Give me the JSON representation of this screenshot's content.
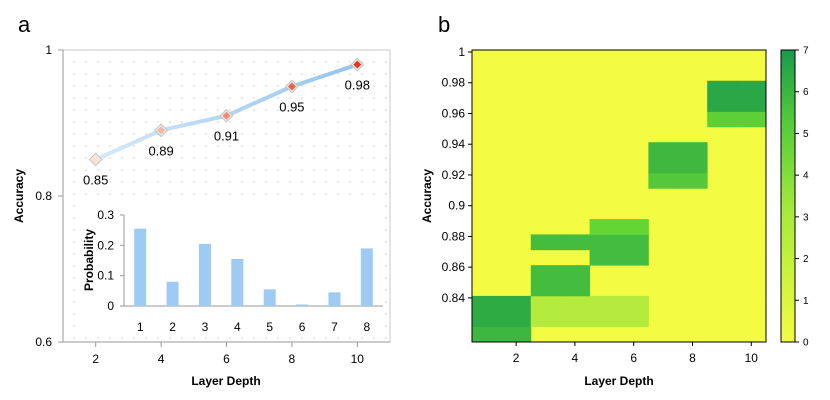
{
  "panel_a_letter": "a",
  "panel_b_letter": "b",
  "chart_data": [
    {
      "type": "line",
      "title": "",
      "xlabel": "Layer Depth",
      "ylabel": "Accuracy",
      "x": [
        2,
        4,
        6,
        8,
        10
      ],
      "values": [
        0.85,
        0.89,
        0.91,
        0.95,
        0.98
      ],
      "data_labels": [
        "0.85",
        "0.89",
        "0.91",
        "0.95",
        "0.98"
      ],
      "xticks": [
        "2",
        "4",
        "6",
        "8",
        "10"
      ],
      "yticks": [
        "0.6",
        "0.8",
        "1"
      ],
      "xlim": [
        1,
        11
      ],
      "ylim": [
        0.6,
        1
      ],
      "grid": "dotted background",
      "colors": {
        "line_start": "#d6e8f7",
        "line_end": "#8fc2ec",
        "marker_start": "#fde2cf",
        "marker_end": "#e8361c"
      }
    },
    {
      "type": "bar",
      "title": "",
      "xlabel": "",
      "ylabel": "Probability",
      "categories": [
        "1",
        "2",
        "3",
        "4",
        "5",
        "6",
        "7",
        "8"
      ],
      "values": [
        0.255,
        0.08,
        0.205,
        0.155,
        0.055,
        0.005,
        0.045,
        0.19
      ],
      "yticks": [
        "0",
        "0.1",
        "0.2",
        "0.3"
      ],
      "ylim": [
        0,
        0.3
      ],
      "placement": "inset bottom-right of panel a",
      "colors": {
        "bar": "#9ecbf4"
      }
    },
    {
      "type": "heatmap",
      "title": "",
      "xlabel": "Layer Depth",
      "ylabel": "Accuracy",
      "x_categories": [
        "1",
        "2",
        "3",
        "4",
        "5",
        "6",
        "7",
        "8",
        "9",
        "10"
      ],
      "xticks": [
        "2",
        "4",
        "6",
        "8",
        "10"
      ],
      "y_categories": [
        "0.82",
        "0.83",
        "0.84",
        "0.85",
        "0.86",
        "0.87",
        "0.88",
        "0.89",
        "0.90",
        "0.91",
        "0.92",
        "0.93",
        "0.94",
        "0.95",
        "0.96",
        "0.97",
        "0.98",
        "0.99",
        "1"
      ],
      "yticks": [
        "1",
        "0.98",
        "0.96",
        "0.94",
        "0.92",
        "0.9",
        "0.88",
        "0.86",
        "0.84"
      ],
      "cells": [
        {
          "x": 1,
          "y": 0.82,
          "value": 5.3
        },
        {
          "x": 2,
          "y": 0.82,
          "value": 5.3
        },
        {
          "x": 1,
          "y": 0.83,
          "value": 6
        },
        {
          "x": 2,
          "y": 0.83,
          "value": 6
        },
        {
          "x": 3,
          "y": 0.83,
          "value": 1.5
        },
        {
          "x": 4,
          "y": 0.83,
          "value": 1.5
        },
        {
          "x": 5,
          "y": 0.83,
          "value": 1.5
        },
        {
          "x": 6,
          "y": 0.83,
          "value": 1.5
        },
        {
          "x": 1,
          "y": 0.84,
          "value": 6
        },
        {
          "x": 2,
          "y": 0.84,
          "value": 6
        },
        {
          "x": 3,
          "y": 0.84,
          "value": 1.5
        },
        {
          "x": 4,
          "y": 0.84,
          "value": 1.5
        },
        {
          "x": 5,
          "y": 0.84,
          "value": 1.5
        },
        {
          "x": 6,
          "y": 0.84,
          "value": 1.5
        },
        {
          "x": 3,
          "y": 0.85,
          "value": 5
        },
        {
          "x": 4,
          "y": 0.85,
          "value": 5
        },
        {
          "x": 3,
          "y": 0.86,
          "value": 5
        },
        {
          "x": 4,
          "y": 0.86,
          "value": 5
        },
        {
          "x": 5,
          "y": 0.87,
          "value": 5
        },
        {
          "x": 6,
          "y": 0.87,
          "value": 5
        },
        {
          "x": 3,
          "y": 0.88,
          "value": 5
        },
        {
          "x": 4,
          "y": 0.88,
          "value": 5
        },
        {
          "x": 5,
          "y": 0.88,
          "value": 5
        },
        {
          "x": 6,
          "y": 0.88,
          "value": 5
        },
        {
          "x": 5,
          "y": 0.89,
          "value": 3.5
        },
        {
          "x": 6,
          "y": 0.89,
          "value": 3.5
        },
        {
          "x": 7,
          "y": 0.92,
          "value": 4.3
        },
        {
          "x": 8,
          "y": 0.92,
          "value": 4.3
        },
        {
          "x": 7,
          "y": 0.93,
          "value": 5.2
        },
        {
          "x": 8,
          "y": 0.93,
          "value": 5.2
        },
        {
          "x": 7,
          "y": 0.94,
          "value": 5.2
        },
        {
          "x": 8,
          "y": 0.94,
          "value": 5.2
        },
        {
          "x": 9,
          "y": 0.96,
          "value": 3.8
        },
        {
          "x": 10,
          "y": 0.96,
          "value": 3.8
        },
        {
          "x": 9,
          "y": 0.97,
          "value": 6.2
        },
        {
          "x": 10,
          "y": 0.97,
          "value": 6.2
        },
        {
          "x": 9,
          "y": 0.98,
          "value": 6.2
        },
        {
          "x": 10,
          "y": 0.98,
          "value": 6.2
        }
      ],
      "default_value": 0,
      "colorbar": {
        "min": 0,
        "max": 7,
        "ticks": [
          "0",
          "1",
          "2",
          "3",
          "4",
          "5",
          "6",
          "7"
        ],
        "colors": {
          "low": "#f3fb42",
          "mid": "#63d535",
          "high": "#1a9a4a"
        }
      }
    }
  ]
}
